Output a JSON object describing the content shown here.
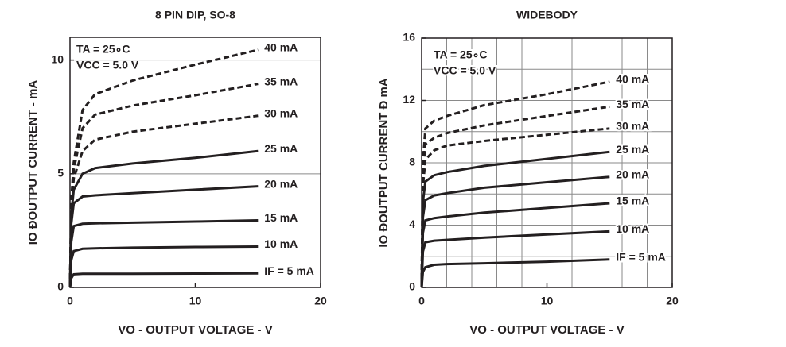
{
  "chart_data": [
    {
      "type": "line",
      "title": "8 PIN DIP, SO-8",
      "x_label": "VO -  OUTPUT VOLTAGE -  V",
      "y_label": "IO ÐOUTPUT CURRENT -  mA",
      "annotations": [
        "TA = 25∘C",
        "VCC = 5.0 V"
      ],
      "xlim": [
        0,
        20
      ],
      "ylim": [
        0,
        11
      ],
      "xticks": [
        0,
        10,
        20
      ],
      "yticks": [
        0,
        5,
        10
      ],
      "ygrid": [
        5,
        10
      ],
      "xgrid": [],
      "x": [
        0,
        0.1,
        0.3,
        1,
        2,
        5,
        10,
        15
      ],
      "series": [
        {
          "name": "IF = 5 mA",
          "color": "#231f20",
          "dashed": false,
          "values": [
            0,
            0.4,
            0.58,
            0.6,
            0.6,
            0.6,
            0.61,
            0.62
          ]
        },
        {
          "name": "10 mA",
          "color": "#231f20",
          "dashed": false,
          "values": [
            0,
            1.2,
            1.6,
            1.7,
            1.72,
            1.75,
            1.78,
            1.8
          ]
        },
        {
          "name": "15 mA",
          "color": "#231f20",
          "dashed": false,
          "values": [
            0,
            2.0,
            2.7,
            2.8,
            2.82,
            2.85,
            2.9,
            2.95
          ]
        },
        {
          "name": "20 mA",
          "color": "#231f20",
          "dashed": false,
          "values": [
            0,
            2.8,
            3.7,
            4.0,
            4.05,
            4.15,
            4.3,
            4.45
          ]
        },
        {
          "name": "25 mA",
          "color": "#231f20",
          "dashed": false,
          "values": [
            0,
            3.2,
            4.3,
            5.0,
            5.25,
            5.45,
            5.7,
            6.0
          ]
        },
        {
          "name": "30 mA",
          "color": "#231f20",
          "dashed": true,
          "values": [
            0,
            3.4,
            4.8,
            6.0,
            6.5,
            6.85,
            7.2,
            7.55
          ]
        },
        {
          "name": "35 mA",
          "color": "#231f20",
          "dashed": true,
          "values": [
            0,
            3.6,
            5.2,
            7.0,
            7.6,
            8.0,
            8.45,
            8.95
          ]
        },
        {
          "name": "40 mA",
          "color": "#231f20",
          "dashed": true,
          "values": [
            0,
            3.8,
            5.5,
            7.8,
            8.5,
            9.1,
            9.8,
            10.45
          ]
        }
      ]
    },
    {
      "type": "line",
      "title": "WIDEBODY",
      "x_label": "VO -  OUTPUT VOLTAGE -  V",
      "y_label": "IO ÐOUTPUT CURRENT Ð mA",
      "annotations": [
        "TA = 25∘C",
        "VCC = 5.0 V"
      ],
      "xlim": [
        0,
        20
      ],
      "ylim": [
        0,
        16
      ],
      "xticks": [
        0,
        10,
        20
      ],
      "yticks": [
        0,
        4,
        8,
        12,
        16
      ],
      "ygrid": [
        2,
        4,
        6,
        8,
        10,
        12,
        14
      ],
      "xgrid": [
        2,
        4,
        6,
        8,
        10,
        12,
        14,
        16,
        18
      ],
      "x": [
        0,
        0.1,
        0.3,
        1,
        2,
        5,
        10,
        15
      ],
      "series": [
        {
          "name": "IF = 5 mA",
          "color": "#231f20",
          "dashed": false,
          "values": [
            0,
            1.0,
            1.3,
            1.45,
            1.5,
            1.55,
            1.65,
            1.8
          ]
        },
        {
          "name": "10 mA",
          "color": "#231f20",
          "dashed": false,
          "values": [
            0,
            2.3,
            2.9,
            3.0,
            3.05,
            3.2,
            3.4,
            3.6
          ]
        },
        {
          "name": "15 mA",
          "color": "#231f20",
          "dashed": false,
          "values": [
            0,
            3.5,
            4.3,
            4.45,
            4.55,
            4.8,
            5.1,
            5.4
          ]
        },
        {
          "name": "20 mA",
          "color": "#231f20",
          "dashed": false,
          "values": [
            0,
            4.5,
            5.6,
            5.9,
            6.05,
            6.4,
            6.75,
            7.1
          ]
        },
        {
          "name": "25 mA",
          "color": "#231f20",
          "dashed": false,
          "values": [
            0,
            5.5,
            6.8,
            7.2,
            7.4,
            7.8,
            8.25,
            8.7
          ]
        },
        {
          "name": "30 mA",
          "color": "#231f20",
          "dashed": true,
          "values": [
            0,
            6.5,
            8.2,
            8.8,
            9.1,
            9.4,
            9.8,
            10.2
          ]
        },
        {
          "name": "35 mA",
          "color": "#231f20",
          "dashed": true,
          "values": [
            0,
            7.2,
            9.2,
            9.6,
            9.9,
            10.4,
            11.0,
            11.6
          ]
        },
        {
          "name": "40 mA",
          "color": "#231f20",
          "dashed": true,
          "values": [
            0,
            8.0,
            10.2,
            10.7,
            11.0,
            11.7,
            12.4,
            13.2
          ]
        }
      ]
    }
  ]
}
